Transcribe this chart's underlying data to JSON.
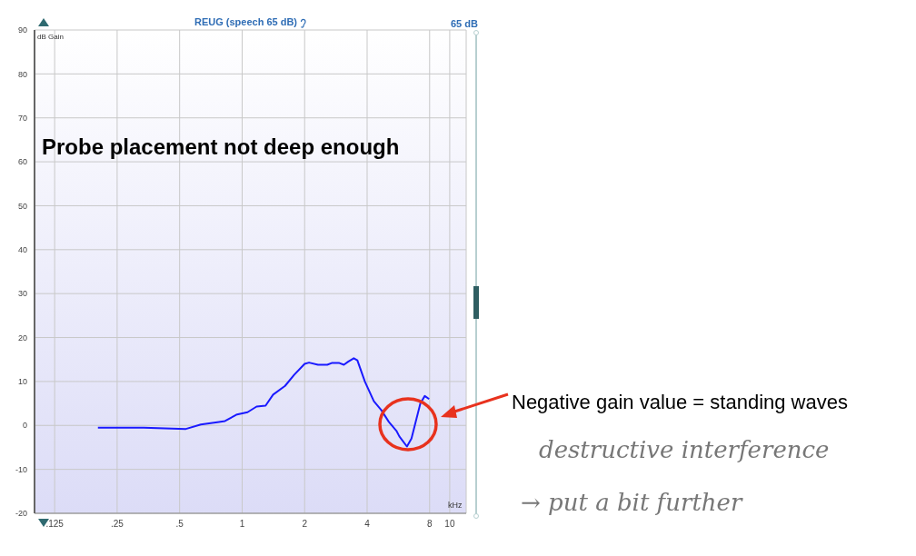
{
  "chart_data": {
    "type": "line",
    "title": "REUG (speech 65 dB)",
    "xlabel": "kHz",
    "ylabel": "dB Gain",
    "log": "x",
    "xlim": [
      0.1,
      12
    ],
    "ylim": [
      -20,
      90
    ],
    "xticks": [
      {
        "value": 0.125,
        "label": ".125"
      },
      {
        "value": 0.25,
        "label": ".25"
      },
      {
        "value": 0.5,
        "label": ".5"
      },
      1,
      2,
      4,
      8,
      10
    ],
    "yticks": [
      -20,
      -10,
      0,
      10,
      20,
      30,
      40,
      50,
      60,
      70,
      80,
      90
    ],
    "grid": true,
    "marker": "none",
    "line_style": "solid",
    "x": [
      0.202,
      0.336,
      0.536,
      0.633,
      0.773,
      0.827,
      0.945,
      1.062,
      1.174,
      1.297,
      1.41,
      1.61,
      1.78,
      2.0,
      2.1,
      2.32,
      2.57,
      2.7,
      2.94,
      3.09,
      3.24,
      3.45,
      3.59,
      3.9,
      4.31,
      4.68,
      5.09,
      5.53,
      5.72,
      6.22,
      6.54,
      7.22,
      7.58,
      7.96
    ],
    "series": [
      {
        "color": "#1a1aff",
        "values": [
          -0.5,
          -0.5,
          -0.8,
          0.2,
          0.8,
          1,
          2.5,
          3,
          4.3,
          4.5,
          7,
          9,
          11.5,
          14,
          14.3,
          13.8,
          13.8,
          14.2,
          14.2,
          13.8,
          14.5,
          15.3,
          14.8,
          10,
          5.5,
          3.5,
          0.8,
          -1.2,
          -2.5,
          -4.8,
          -3,
          5,
          6.7,
          6
        ]
      }
    ],
    "annotations": [
      "65 dB",
      "Probe placement not deep enough",
      "Negative gain value = standing waves",
      "destructive interference",
      "→ put a bit further"
    ]
  }
}
